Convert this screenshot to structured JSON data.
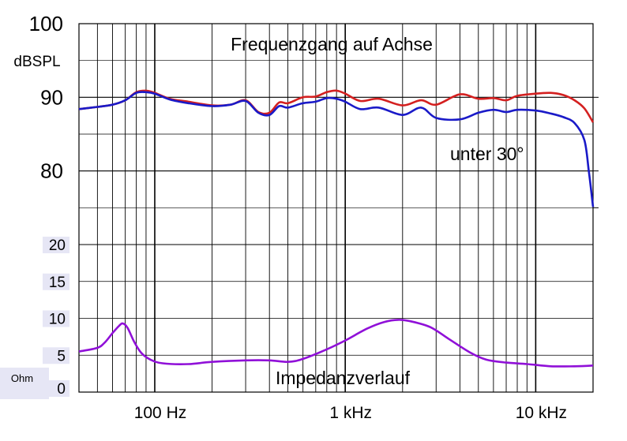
{
  "chart_data": {
    "type": "line",
    "title": "Frequenzgang auf Achse",
    "spl_unit": "dBSPL",
    "ohm_unit": "Ohm",
    "x_scale": "log",
    "x_range_hz": [
      40,
      20000
    ],
    "x_ticks": [
      {
        "value": 100,
        "label": "100 Hz"
      },
      {
        "value": 1000,
        "label": "1 kHz"
      },
      {
        "value": 10000,
        "label": "10 kHz"
      }
    ],
    "spl_axis": {
      "range": [
        70,
        100
      ],
      "ticks": [
        {
          "value": 100,
          "label": "100"
        },
        {
          "value": 90,
          "label": "90"
        },
        {
          "value": 80,
          "label": "80"
        }
      ]
    },
    "ohm_axis": {
      "range": [
        0,
        20
      ],
      "ticks": [
        {
          "value": 20,
          "label": "20"
        },
        {
          "value": 15,
          "label": "15"
        },
        {
          "value": 10,
          "label": "10"
        },
        {
          "value": 5,
          "label": "5"
        },
        {
          "value": 0,
          "label": "0"
        }
      ]
    },
    "grid": true,
    "annotations": [
      {
        "text": "unter 30°",
        "series": "off_axis_30"
      },
      {
        "text": "Impedanzverlauf",
        "series": "impedance"
      }
    ],
    "series": [
      {
        "id": "on_axis",
        "axis": "spl",
        "color": "#d42020",
        "points": [
          [
            40,
            88.4
          ],
          [
            50,
            88.7
          ],
          [
            60,
            89.0
          ],
          [
            70,
            89.6
          ],
          [
            80,
            90.7
          ],
          [
            90,
            90.9
          ],
          [
            100,
            90.6
          ],
          [
            120,
            89.8
          ],
          [
            150,
            89.4
          ],
          [
            200,
            88.9
          ],
          [
            250,
            89.0
          ],
          [
            300,
            89.6
          ],
          [
            350,
            88.0
          ],
          [
            400,
            87.9
          ],
          [
            450,
            89.3
          ],
          [
            500,
            89.2
          ],
          [
            600,
            90.0
          ],
          [
            700,
            90.1
          ],
          [
            800,
            90.7
          ],
          [
            900,
            90.9
          ],
          [
            1000,
            90.5
          ],
          [
            1200,
            89.5
          ],
          [
            1500,
            89.8
          ],
          [
            2000,
            88.9
          ],
          [
            2500,
            89.6
          ],
          [
            3000,
            89.0
          ],
          [
            4000,
            90.4
          ],
          [
            5000,
            89.8
          ],
          [
            6000,
            89.9
          ],
          [
            7000,
            89.6
          ],
          [
            8000,
            90.2
          ],
          [
            10000,
            90.5
          ],
          [
            12000,
            90.6
          ],
          [
            14000,
            90.3
          ],
          [
            16000,
            89.6
          ],
          [
            18000,
            88.5
          ],
          [
            20000,
            86.6
          ]
        ]
      },
      {
        "id": "off_axis_30",
        "axis": "spl",
        "color": "#1a1ac8",
        "points": [
          [
            40,
            88.4
          ],
          [
            50,
            88.7
          ],
          [
            60,
            89.0
          ],
          [
            70,
            89.6
          ],
          [
            80,
            90.6
          ],
          [
            90,
            90.7
          ],
          [
            100,
            90.5
          ],
          [
            120,
            89.7
          ],
          [
            150,
            89.2
          ],
          [
            200,
            88.8
          ],
          [
            250,
            89.0
          ],
          [
            300,
            89.5
          ],
          [
            350,
            87.9
          ],
          [
            400,
            87.6
          ],
          [
            450,
            88.8
          ],
          [
            500,
            88.6
          ],
          [
            600,
            89.2
          ],
          [
            700,
            89.4
          ],
          [
            800,
            89.9
          ],
          [
            900,
            89.8
          ],
          [
            1000,
            89.4
          ],
          [
            1200,
            88.4
          ],
          [
            1500,
            88.6
          ],
          [
            2000,
            87.6
          ],
          [
            2500,
            88.6
          ],
          [
            3000,
            87.2
          ],
          [
            4000,
            87.0
          ],
          [
            5000,
            87.9
          ],
          [
            6000,
            88.3
          ],
          [
            7000,
            88.0
          ],
          [
            8000,
            88.3
          ],
          [
            10000,
            88.2
          ],
          [
            12000,
            87.8
          ],
          [
            14000,
            87.3
          ],
          [
            16000,
            86.5
          ],
          [
            18000,
            84.2
          ],
          [
            19000,
            80.0
          ],
          [
            20000,
            75.1
          ]
        ]
      },
      {
        "id": "impedance",
        "axis": "ohm",
        "color": "#9010d8",
        "points": [
          [
            40,
            5.5
          ],
          [
            50,
            6.0
          ],
          [
            55,
            6.8
          ],
          [
            60,
            8.0
          ],
          [
            65,
            9.0
          ],
          [
            68,
            9.3
          ],
          [
            72,
            8.7
          ],
          [
            78,
            6.8
          ],
          [
            85,
            5.3
          ],
          [
            95,
            4.4
          ],
          [
            110,
            3.9
          ],
          [
            150,
            3.8
          ],
          [
            200,
            4.1
          ],
          [
            300,
            4.3
          ],
          [
            400,
            4.3
          ],
          [
            500,
            4.1
          ],
          [
            600,
            4.5
          ],
          [
            800,
            5.8
          ],
          [
            1000,
            7.0
          ],
          [
            1300,
            8.6
          ],
          [
            1600,
            9.5
          ],
          [
            1900,
            9.8
          ],
          [
            2200,
            9.6
          ],
          [
            2800,
            8.8
          ],
          [
            3500,
            7.2
          ],
          [
            4500,
            5.4
          ],
          [
            5500,
            4.4
          ],
          [
            7000,
            4.0
          ],
          [
            9000,
            3.8
          ],
          [
            12000,
            3.5
          ],
          [
            16000,
            3.5
          ],
          [
            20000,
            3.6
          ]
        ]
      }
    ]
  }
}
